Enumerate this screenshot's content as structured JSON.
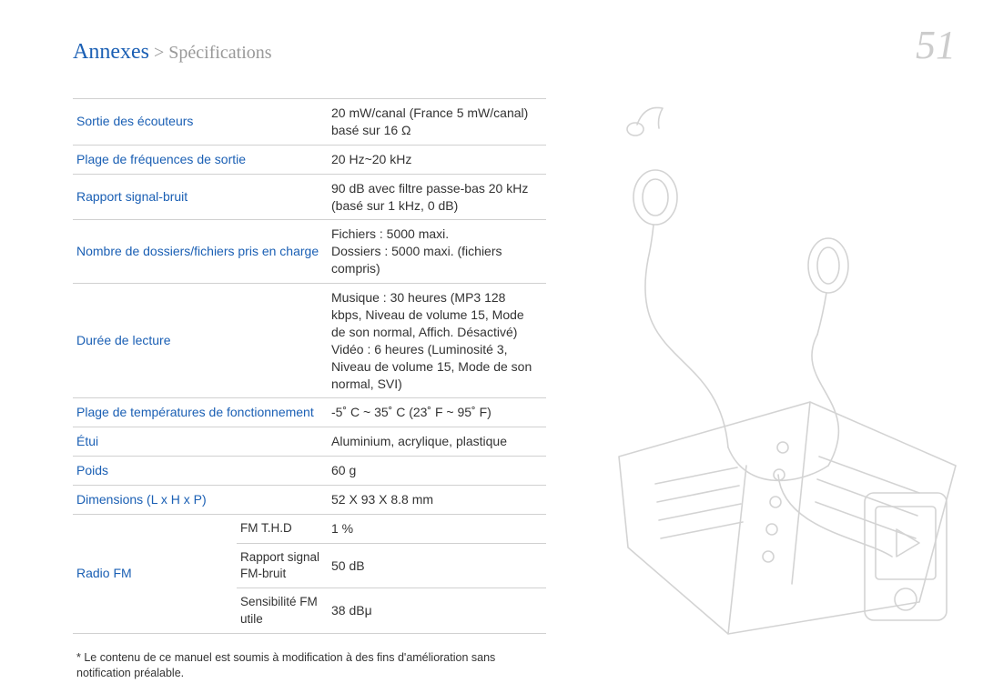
{
  "header": {
    "breadcrumb_main": "Annexes",
    "breadcrumb_separator": " > ",
    "breadcrumb_sub": "Spécifications",
    "page_number": "51"
  },
  "colors": {
    "accent": "#1a5fb4",
    "muted": "#999999",
    "page_num": "#cccccc",
    "text": "#333333",
    "border": "#d0d0d0",
    "illustration_stroke": "#666666"
  },
  "fonts": {
    "breadcrumb_main_size": 24,
    "breadcrumb_sub_size": 20,
    "page_number_size": 44,
    "table_size": 14,
    "footnote_size": 12.5
  },
  "spec_table": {
    "type": "table",
    "rows": [
      {
        "label": "Sortie des écouteurs",
        "value": "20 mW/canal (France 5 mW/canal)\nbasé sur 16 Ω"
      },
      {
        "label": "Plage de fréquences de sortie",
        "value": "20 Hz~20 kHz"
      },
      {
        "label": "Rapport signal-bruit",
        "value": "90 dB avec filtre passe-bas 20 kHz\n(basé sur 1 kHz, 0 dB)"
      },
      {
        "label": "Nombre de dossiers/fichiers pris en charge",
        "value": "Fichiers : 5000 maxi.\nDossiers : 5000 maxi. (fichiers compris)"
      },
      {
        "label": "Durée de lecture",
        "value": "Musique : 30 heures (MP3 128 kbps, Niveau de volume 15, Mode de son normal, Affich. Désactivé)\nVidéo : 6 heures (Luminosité 3, Niveau de volume 15, Mode de son normal, SVI)"
      },
      {
        "label": "Plage de températures de fonctionnement",
        "value": "-5˚ C ~ 35˚ C (23˚ F ~ 95˚ F)"
      },
      {
        "label": "Étui",
        "value": "Aluminium, acrylique, plastique"
      },
      {
        "label": "Poids",
        "value": "60 g"
      },
      {
        "label": "Dimensions (L x H x P)",
        "value": "52 X 93 X 8.8 mm"
      }
    ],
    "radio_fm": {
      "label": "Radio FM",
      "subrows": [
        {
          "sublabel": "FM T.H.D",
          "value": "1 %"
        },
        {
          "sublabel": "Rapport signal FM-bruit",
          "value": "50 dB"
        },
        {
          "sublabel": "Sensibilité FM utile",
          "value": "38 dBμ"
        }
      ]
    }
  },
  "footnote": "* Le contenu de ce manuel est soumis à modification à des fins d'amélioration sans notification préalable.",
  "illustration": {
    "description": "line-art earbuds with cable, open ring-bound planner notebook, small mp3 player with play triangle, music note",
    "stroke_color": "#666666",
    "opacity": 0.28
  }
}
